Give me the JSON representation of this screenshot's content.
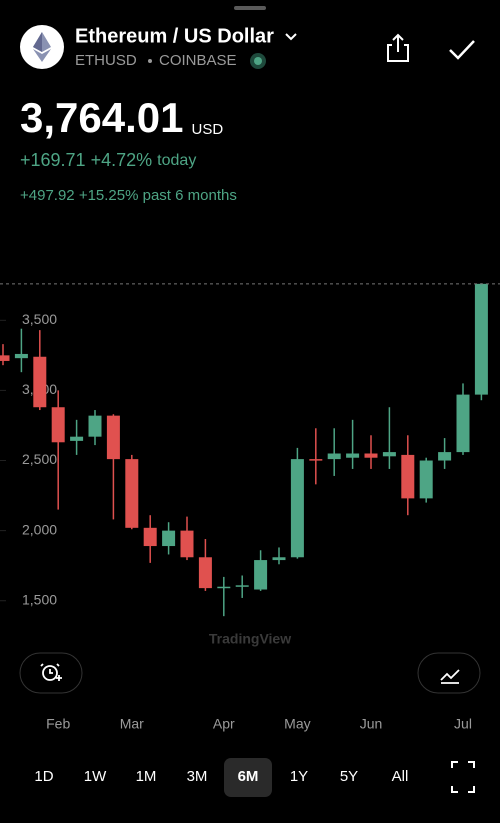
{
  "header": {
    "title": "Ethereum / US Dollar",
    "symbol": "ETHUSD",
    "exchange": "COINBASE",
    "price": "3,764.01",
    "currency": "USD",
    "change_today": "+169.71",
    "change_today_pct": "+4.72%",
    "today_label": "today",
    "change_period": "+497.92",
    "change_period_pct": "+15.25%",
    "period_label": "past 6 months"
  },
  "watermark": "TradingView",
  "timeframes": {
    "options": [
      "1D",
      "1W",
      "1M",
      "3M",
      "6M",
      "1Y",
      "5Y",
      "All"
    ],
    "selected": "6M"
  },
  "chart_data": {
    "type": "candlestick",
    "categories": [
      null,
      null,
      null,
      "Feb",
      null,
      null,
      null,
      "Mar",
      null,
      null,
      null,
      null,
      "Apr",
      null,
      null,
      null,
      "May",
      null,
      null,
      null,
      "Jun",
      null,
      null,
      null,
      null,
      "Jul",
      null
    ],
    "open": [
      3250,
      3230,
      3240,
      2880,
      2640,
      2670,
      2820,
      2510,
      2020,
      1890,
      2000,
      1810,
      1590,
      1600,
      1580,
      1790,
      1810,
      2510,
      2510,
      2520,
      2550,
      2530,
      2540,
      2230,
      2500,
      2560,
      2970
    ],
    "high": [
      3330,
      3440,
      3430,
      3000,
      2790,
      2860,
      2830,
      2540,
      2110,
      2060,
      2100,
      1940,
      1670,
      1680,
      1860,
      1880,
      2590,
      2730,
      2730,
      2790,
      2680,
      2880,
      2680,
      2520,
      2660,
      3050,
      3764
    ],
    "low": [
      3180,
      3130,
      2860,
      2150,
      2540,
      2610,
      2080,
      2010,
      1770,
      1830,
      1790,
      1570,
      1390,
      1520,
      1570,
      1760,
      1800,
      2330,
      2390,
      2440,
      2440,
      2440,
      2110,
      2200,
      2440,
      2540,
      2930
    ],
    "close": [
      3210,
      3260,
      2880,
      2630,
      2670,
      2820,
      2510,
      2020,
      1890,
      2000,
      1810,
      1590,
      1600,
      1610,
      1790,
      1810,
      2510,
      2500,
      2550,
      2550,
      2520,
      2560,
      2230,
      2500,
      2560,
      2970,
      3760
    ],
    "up_color": "#4ea585",
    "down_color": "#e0514f",
    "ylim": [
      1220,
      3930
    ],
    "yticks": [
      {
        "value": 1500,
        "label": "1,500"
      },
      {
        "value": 2000,
        "label": "2,000"
      },
      {
        "value": 2500,
        "label": "2,500"
      },
      {
        "value": 3000,
        "label": "3,000"
      },
      {
        "value": 3500,
        "label": "3,500"
      }
    ]
  }
}
